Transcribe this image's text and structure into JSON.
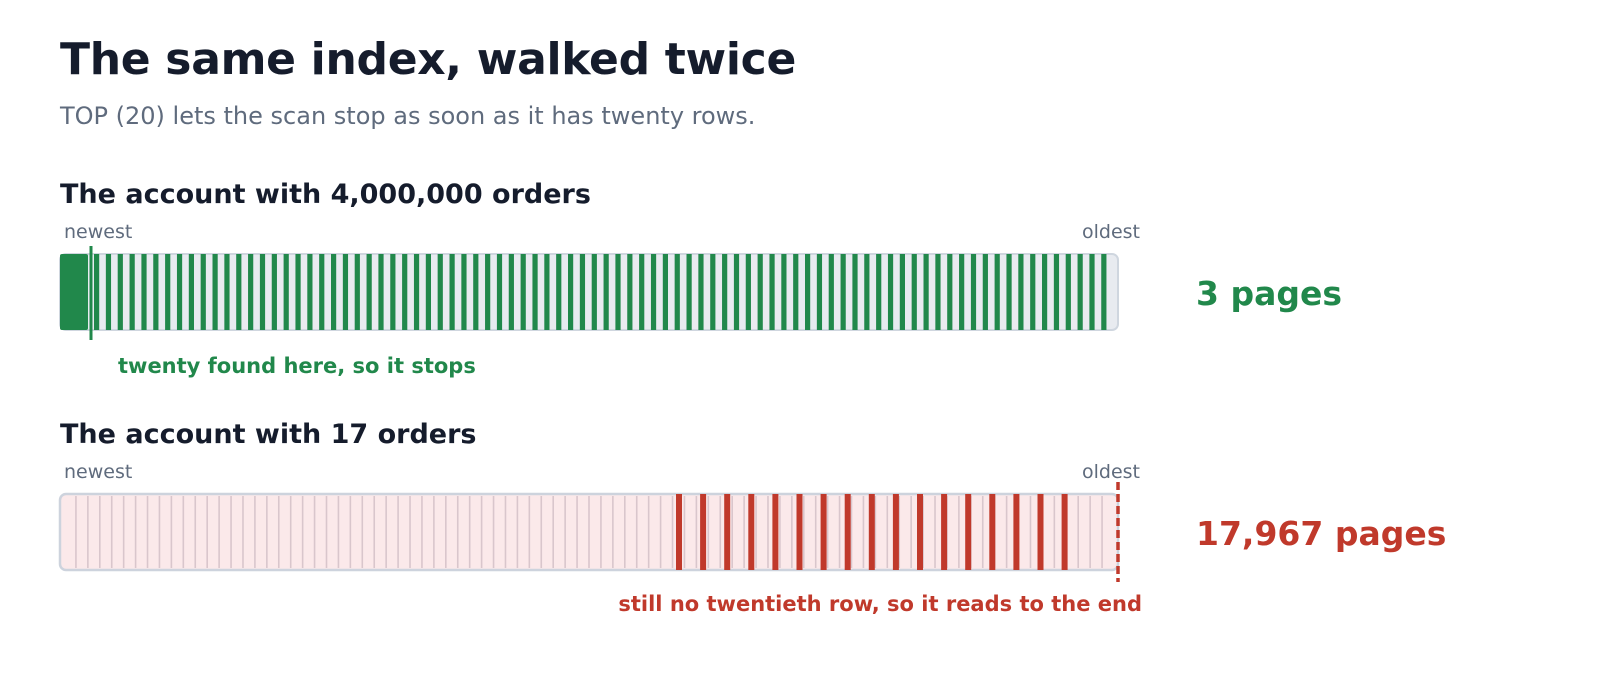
{
  "title": "The same index, walked twice",
  "subtitle": "TOP (20) lets the scan stop as soon as it has twenty rows.",
  "scans": [
    {
      "heading": "The account with 4,000,000 orders",
      "start_label": "newest",
      "end_label": "oldest",
      "result": "3 pages",
      "note": "twenty found here, so it stops",
      "color": "#21884b",
      "pages_read": 3,
      "matching_rows_found": 20
    },
    {
      "heading": "The account with 17 orders",
      "start_label": "newest",
      "end_label": "oldest",
      "result": "17,967 pages",
      "note": "still no twentieth row, so it reads to the end",
      "color": "#c0392b",
      "pages_read": 17967,
      "matching_rows_found": 17
    }
  ]
}
